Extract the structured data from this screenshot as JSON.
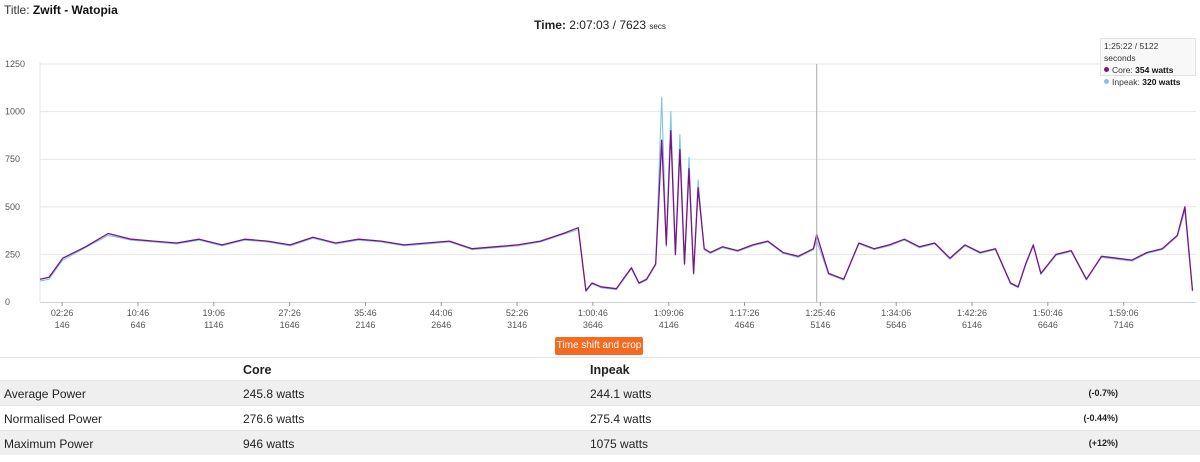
{
  "header": {
    "title_prefix": "Title:",
    "title_name": "Zwift - Watopia",
    "time_label": "Time:",
    "time_value": "2:07:03 / 7623",
    "time_unit": "secs"
  },
  "tooltip": {
    "position": "1:25:22 / 5122 seconds",
    "core_label": "Core:",
    "core_value": "354 watts",
    "inpeak_label": "Inpeak:",
    "inpeak_value": "320 watts"
  },
  "crop_button": "Time shift and crop",
  "table": {
    "headers": [
      "",
      "Core",
      "Inpeak"
    ],
    "rows": [
      {
        "metric": "Average Power",
        "core": "245.8 watts",
        "inpeak": "244.1 watts",
        "diff": "(-0.7%)"
      },
      {
        "metric": "Normalised Power",
        "core": "276.6 watts",
        "inpeak": "275.4 watts",
        "diff": "(-0.44%)"
      },
      {
        "metric": "Maximum Power",
        "core": "946 watts",
        "inpeak": "1075 watts",
        "diff": "(+12%)"
      }
    ]
  },
  "colors": {
    "core": "#7b1480",
    "inpeak": "#7fc4ec",
    "button": "#f26b21",
    "crosshair": "#aaaaaa"
  },
  "chart_data": {
    "type": "line",
    "x_unit": "seconds",
    "xlim": [
      0,
      7623
    ],
    "ylim": [
      0,
      1250
    ],
    "yticks": [
      0,
      250,
      500,
      750,
      1000,
      1250
    ],
    "xtick_times": [
      "02:26",
      "10:46",
      "19:06",
      "27:26",
      "35:46",
      "44:06",
      "52:26",
      "1:00:46",
      "1:09:06",
      "1:17:26",
      "1:25:46",
      "1:34:06",
      "1:42:26",
      "1:50:46",
      "1:59:06"
    ],
    "xtick_seconds": [
      146,
      646,
      1146,
      1646,
      2146,
      2646,
      3146,
      3646,
      4146,
      4646,
      5146,
      5646,
      6146,
      6646,
      7146
    ],
    "crosshair_x": 5122,
    "series": [
      {
        "name": "Core",
        "x": [
          0,
          60,
          150,
          300,
          450,
          600,
          750,
          900,
          1050,
          1200,
          1350,
          1500,
          1650,
          1800,
          1950,
          2100,
          2250,
          2400,
          2550,
          2700,
          2850,
          3000,
          3150,
          3300,
          3450,
          3550,
          3600,
          3640,
          3700,
          3800,
          3900,
          3950,
          4000,
          4060,
          4100,
          4130,
          4160,
          4190,
          4220,
          4250,
          4280,
          4310,
          4340,
          4380,
          4420,
          4500,
          4600,
          4700,
          4800,
          4900,
          5000,
          5100,
          5122,
          5200,
          5300,
          5400,
          5500,
          5600,
          5700,
          5800,
          5900,
          6000,
          6100,
          6200,
          6300,
          6400,
          6450,
          6500,
          6550,
          6600,
          6700,
          6800,
          6900,
          7000,
          7100,
          7200,
          7300,
          7400,
          7500,
          7550,
          7600
        ],
        "values": [
          120,
          130,
          230,
          290,
          360,
          330,
          320,
          310,
          330,
          300,
          330,
          320,
          300,
          340,
          310,
          330,
          320,
          300,
          310,
          320,
          280,
          290,
          300,
          320,
          360,
          390,
          60,
          100,
          80,
          70,
          180,
          100,
          120,
          200,
          850,
          300,
          900,
          250,
          800,
          200,
          700,
          150,
          600,
          280,
          260,
          290,
          270,
          300,
          320,
          260,
          240,
          280,
          354,
          150,
          120,
          310,
          280,
          300,
          330,
          290,
          310,
          230,
          300,
          260,
          280,
          100,
          80,
          200,
          300,
          150,
          250,
          270,
          120,
          240,
          230,
          220,
          260,
          280,
          350,
          500,
          60
        ]
      },
      {
        "name": "Inpeak",
        "x": [
          0,
          60,
          150,
          300,
          450,
          600,
          750,
          900,
          1050,
          1200,
          1350,
          1500,
          1650,
          1800,
          1950,
          2100,
          2250,
          2400,
          2550,
          2700,
          2850,
          3000,
          3150,
          3300,
          3450,
          3550,
          3600,
          3640,
          3700,
          3800,
          3900,
          3950,
          4000,
          4060,
          4100,
          4130,
          4160,
          4190,
          4220,
          4250,
          4280,
          4310,
          4340,
          4380,
          4420,
          4500,
          4600,
          4700,
          4800,
          4900,
          5000,
          5100,
          5122,
          5200,
          5300,
          5400,
          5500,
          5600,
          5700,
          5800,
          5900,
          6000,
          6100,
          6200,
          6300,
          6400,
          6450,
          6500,
          6550,
          6600,
          6700,
          6800,
          6900,
          7000,
          7100,
          7200,
          7300,
          7400,
          7500,
          7550,
          7600
        ],
        "values": [
          110,
          120,
          220,
          285,
          350,
          325,
          315,
          305,
          325,
          295,
          325,
          315,
          295,
          335,
          305,
          325,
          315,
          295,
          305,
          315,
          275,
          285,
          295,
          315,
          355,
          380,
          55,
          95,
          75,
          65,
          175,
          95,
          115,
          195,
          1075,
          290,
          1000,
          245,
          880,
          195,
          760,
          145,
          640,
          275,
          255,
          285,
          265,
          295,
          315,
          255,
          235,
          275,
          320,
          145,
          115,
          305,
          275,
          295,
          325,
          285,
          305,
          225,
          295,
          255,
          275,
          95,
          75,
          195,
          295,
          145,
          245,
          265,
          115,
          235,
          225,
          215,
          255,
          275,
          345,
          480,
          55
        ]
      }
    ]
  }
}
